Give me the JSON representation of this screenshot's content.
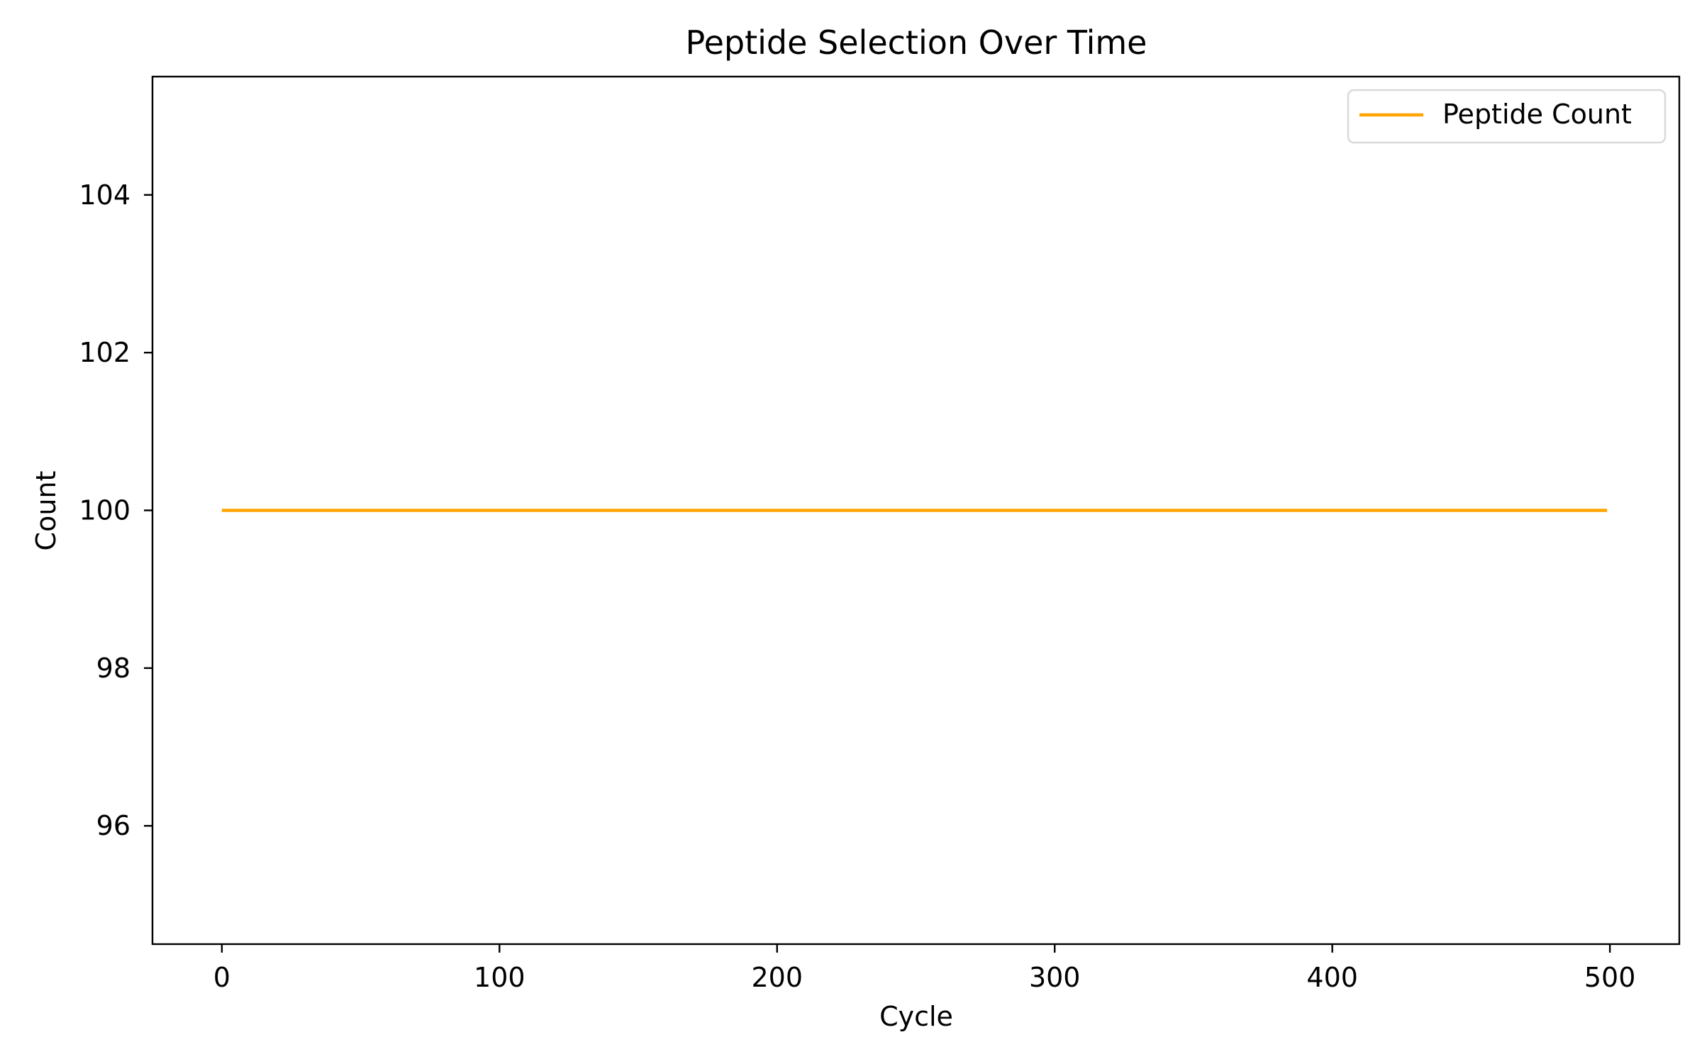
{
  "chart_data": {
    "type": "line",
    "title": "Peptide Selection Over Time",
    "xlabel": "Cycle",
    "ylabel": "Count",
    "xlim": [
      -25,
      525
    ],
    "ylim": [
      94.5,
      105.5
    ],
    "xticks": [
      0,
      100,
      200,
      300,
      400,
      500
    ],
    "yticks": [
      96,
      98,
      100,
      102,
      104
    ],
    "grid": false,
    "legend": {
      "placement": "top-right"
    },
    "series": [
      {
        "name": "Peptide Count",
        "color": "#FFA500",
        "x": [
          0,
          499
        ],
        "y": [
          100,
          100
        ]
      }
    ]
  }
}
